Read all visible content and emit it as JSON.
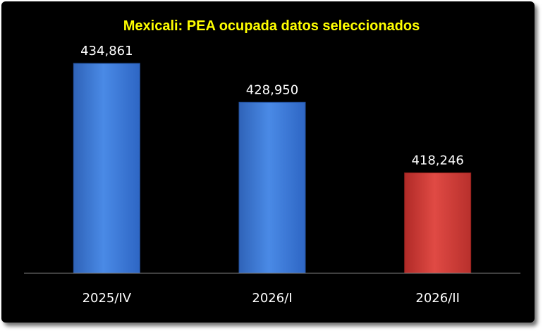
{
  "chart_data": {
    "type": "bar",
    "title": "Mexicali: PEA ocupada datos seleccionados",
    "categories": [
      "2025/IV",
      "2026/I",
      "2026/II"
    ],
    "values": [
      434861,
      428950,
      418246
    ],
    "data_labels": [
      "434,861",
      "428,950",
      "418,246"
    ],
    "bar_colors": [
      "#3f7fdc",
      "#3f7fdc",
      "#d93a35"
    ],
    "ylim": [
      403000,
      437000
    ],
    "xlabel": "",
    "ylabel": "",
    "grid": false,
    "legend": "none",
    "background": "#000000",
    "title_color": "#ffff00"
  }
}
